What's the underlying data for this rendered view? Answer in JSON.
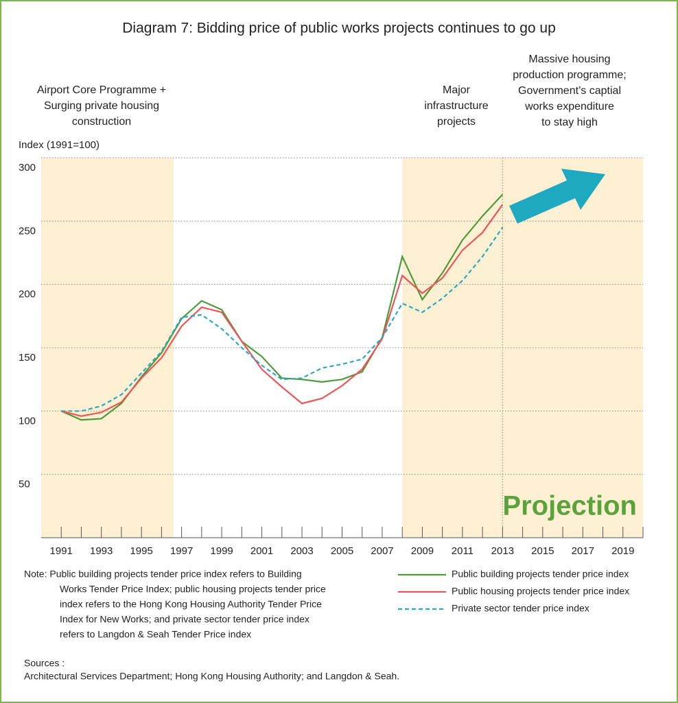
{
  "chart_data": {
    "type": "line",
    "title": "Diagram 7: Bidding price of public works projects continues to go up",
    "y_label": "Index (1991=100)",
    "annotations": [
      [
        "Airport Core Programme +",
        "Surging private housing",
        "construction"
      ],
      [
        "Major",
        "infrastructure",
        "projects"
      ],
      [
        "Massive housing",
        "production programme;",
        "Government’s captial",
        "works expenditure",
        "to stay high"
      ]
    ],
    "projection_label": "Projection",
    "x": [
      1991,
      1992,
      1993,
      1994,
      1995,
      1996,
      1997,
      1998,
      1999,
      2000,
      2001,
      2002,
      2003,
      2004,
      2005,
      2006,
      2007,
      2008,
      2009,
      2010,
      2011,
      2012,
      2013
    ],
    "series": [
      {
        "name": "Public building projects tender price index",
        "color": "#4e9a3a",
        "dash": false,
        "values": [
          100,
          93,
          94,
          106,
          127,
          146,
          173,
          187,
          180,
          155,
          143,
          126,
          125,
          123,
          125,
          131,
          158,
          222,
          188,
          209,
          235,
          254,
          271
        ]
      },
      {
        "name": "Public housing projects tender price index",
        "color": "#ee5555",
        "dash": false,
        "values": [
          100,
          96,
          99,
          107,
          126,
          142,
          167,
          182,
          178,
          155,
          133,
          119,
          106,
          110,
          120,
          133,
          157,
          207,
          193,
          205,
          227,
          241,
          263
        ]
      },
      {
        "name": "Private sector tender price index",
        "color": "#2aa8c0",
        "dash": true,
        "values": [
          100,
          100,
          104,
          113,
          130,
          147,
          174,
          176,
          165,
          150,
          136,
          125,
          126,
          134,
          137,
          141,
          158,
          185,
          178,
          189,
          203,
          222,
          245
        ]
      }
    ],
    "shaded_regions": [
      [
        1990,
        1996.6
      ],
      [
        2008,
        2020
      ]
    ],
    "shade_color": "#fdf0d2",
    "projection_start": 2013,
    "xlim": [
      1990,
      2020
    ],
    "xticks": [
      1991,
      1993,
      1995,
      1997,
      1999,
      2001,
      2003,
      2005,
      2007,
      2009,
      2011,
      2013,
      2015,
      2017,
      2019
    ],
    "xminorticks": [
      1992,
      1994,
      1996,
      1998,
      2000,
      2002,
      2004,
      2006,
      2008,
      2010,
      2012,
      2014,
      2016,
      2018,
      2020
    ],
    "ylim": [
      0,
      300
    ],
    "yticks": [
      50,
      100,
      150,
      200,
      250,
      300
    ],
    "grid": true,
    "note": [
      "Note:  Public building projects tender price index refers to Building",
      "Works Tender Price Index; public housing projects tender price",
      "index refers to the Hong Kong Housing Authority Tender Price",
      "Index for New Works; and private sector tender price index",
      "refers to Langdon & Seah Tender Price index"
    ],
    "sources": [
      "Sources :",
      "Architectural Services Department; Hong Kong Housing Authority; and Langdon & Seah."
    ]
  }
}
